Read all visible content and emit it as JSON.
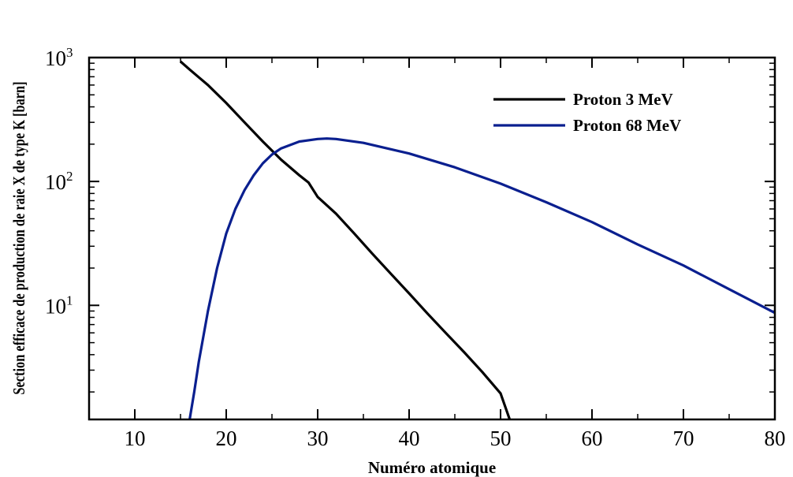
{
  "chart_data": {
    "type": "line",
    "xlabel": "Numéro atomique",
    "ylabel": "Section efficace de production de raie X de type K [barn]",
    "xlim": [
      5,
      80
    ],
    "ylim": [
      1.2,
      1000
    ],
    "yscale": "log",
    "x_ticks": [
      {
        "value": 10,
        "label": "10"
      },
      {
        "value": 20,
        "label": "20"
      },
      {
        "value": 30,
        "label": "30"
      },
      {
        "value": 40,
        "label": "40"
      },
      {
        "value": 50,
        "label": "50"
      },
      {
        "value": 60,
        "label": "60"
      },
      {
        "value": 70,
        "label": "70"
      },
      {
        "value": 80,
        "label": "80"
      }
    ],
    "y_ticks": [
      {
        "value": 10,
        "base": "10",
        "exp": "1"
      },
      {
        "value": 100,
        "base": "10",
        "exp": "2"
      },
      {
        "value": 1000,
        "base": "10",
        "exp": "3"
      }
    ],
    "legend_position": "top-right",
    "grid": false,
    "series": [
      {
        "name": "Proton 3 MeV",
        "color": "#000000",
        "points": [
          [
            15,
            930
          ],
          [
            16,
            800
          ],
          [
            18,
            600
          ],
          [
            20,
            430
          ],
          [
            22,
            300
          ],
          [
            24,
            210
          ],
          [
            26,
            150
          ],
          [
            28,
            112
          ],
          [
            29,
            98
          ],
          [
            30,
            75
          ],
          [
            32,
            55
          ],
          [
            34,
            38
          ],
          [
            36,
            26
          ],
          [
            38,
            18
          ],
          [
            40,
            12.5
          ],
          [
            42,
            8.6
          ],
          [
            44,
            6.0
          ],
          [
            46,
            4.2
          ],
          [
            48,
            2.9
          ],
          [
            50,
            1.95
          ],
          [
            51,
            1.2
          ]
        ]
      },
      {
        "name": "Proton 68 MeV",
        "color": "#0a1f8f",
        "points": [
          [
            16,
            1.2
          ],
          [
            16.5,
            2.0
          ],
          [
            17,
            3.5
          ],
          [
            18,
            9
          ],
          [
            19,
            20
          ],
          [
            20,
            38
          ],
          [
            21,
            60
          ],
          [
            22,
            85
          ],
          [
            23,
            112
          ],
          [
            24,
            140
          ],
          [
            25,
            165
          ],
          [
            26,
            185
          ],
          [
            28,
            210
          ],
          [
            30,
            220
          ],
          [
            31,
            222
          ],
          [
            32,
            220
          ],
          [
            35,
            205
          ],
          [
            40,
            168
          ],
          [
            45,
            130
          ],
          [
            50,
            96
          ],
          [
            55,
            68
          ],
          [
            60,
            47
          ],
          [
            65,
            31
          ],
          [
            70,
            21
          ],
          [
            75,
            13.5
          ],
          [
            80,
            8.7
          ]
        ]
      }
    ]
  }
}
